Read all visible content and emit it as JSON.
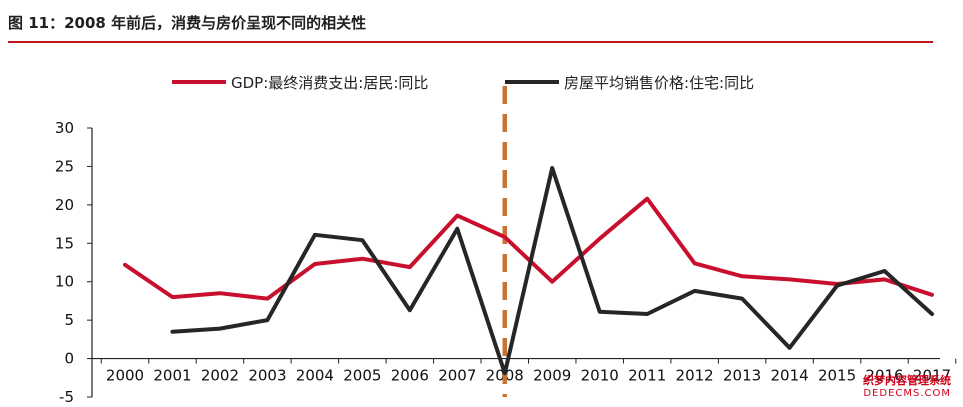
{
  "figure": {
    "title": "图 11：2008 年前后，消费与房价呈现不同的相关性"
  },
  "colors": {
    "title_rule": "#c0151b",
    "consumption": "#c8102e",
    "housing": "#262626",
    "marker": "#c87533",
    "axis": "#222222"
  },
  "chart_data": {
    "type": "line",
    "title": "",
    "xlabel": "",
    "ylabel": "",
    "categories": [
      "2000",
      "2001",
      "2002",
      "2003",
      "2004",
      "2005",
      "2006",
      "2007",
      "2008",
      "2009",
      "2010",
      "2011",
      "2012",
      "2013",
      "2014",
      "2015",
      "2016",
      "2017"
    ],
    "ylim": [
      -5,
      30
    ],
    "yticks": [
      -5,
      0,
      5,
      10,
      15,
      20,
      25,
      30
    ],
    "grid": false,
    "legend_position": "top",
    "vertical_marker": {
      "category": "2008",
      "style": "dashed"
    },
    "series": [
      {
        "name": "GDP:最终消费支出:居民:同比",
        "color": "#c8102e",
        "values": [
          12.2,
          8.0,
          8.5,
          7.8,
          12.3,
          13.0,
          11.9,
          18.6,
          15.8,
          10.0,
          15.6,
          20.8,
          12.4,
          10.7,
          10.3,
          9.7,
          10.3,
          8.3
        ]
      },
      {
        "name": "房屋平均销售价格:住宅:同比",
        "color": "#262626",
        "values": [
          null,
          3.5,
          3.9,
          5.0,
          16.1,
          15.4,
          6.3,
          16.9,
          -1.9,
          24.8,
          6.1,
          5.8,
          8.8,
          7.8,
          1.4,
          9.5,
          11.4,
          5.8
        ]
      }
    ]
  },
  "watermark": {
    "line1": "织梦内容管理系统",
    "line2": "DEDECMS.COM"
  }
}
